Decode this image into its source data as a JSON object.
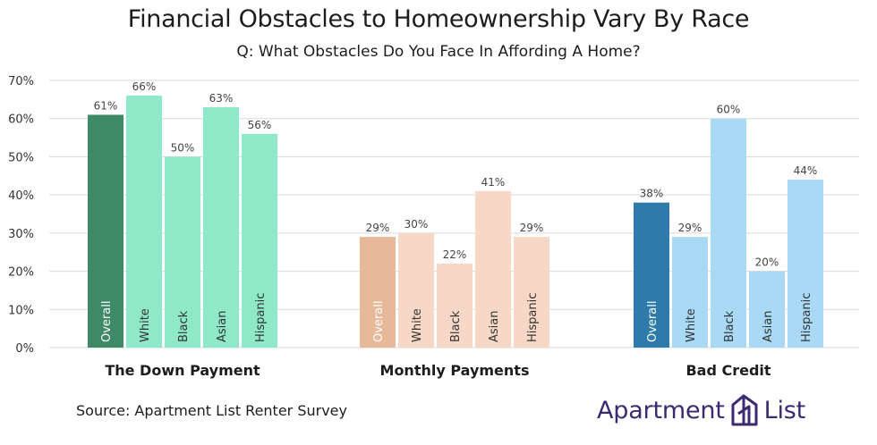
{
  "header": {
    "title": "Financial Obstacles to Homeownership Vary By Race",
    "subtitle": "Q: What Obstacles Do You Face In Affording A Home?"
  },
  "footer": {
    "source": "Source: Apartment List  Renter Survey",
    "logo_word1": "Apartment",
    "logo_word2": "List",
    "logo_icon": "apartment-list-logo-icon"
  },
  "colors": {
    "down_payment_overall": "#3e8a66",
    "down_payment_groups": "#8fe8c8",
    "monthly_overall": "#e8b89a",
    "monthly_groups": "#f7d8c6",
    "bad_credit_overall": "#2e7bab",
    "bad_credit_groups": "#a9d9f5",
    "grid": "#d9d9d9",
    "logo": "#3b2a72"
  },
  "chart_data": {
    "type": "bar",
    "title": "Financial Obstacles to Homeownership Vary By Race",
    "subtitle": "Q: What Obstacles Do You Face In Affording A Home?",
    "ylim": [
      0,
      70
    ],
    "yticks": [
      "0%",
      "10%",
      "20%",
      "30%",
      "40%",
      "50%",
      "60%",
      "70%"
    ],
    "grid": true,
    "groups": [
      {
        "name": "The Down Payment",
        "bars": [
          {
            "label": "Overall",
            "value": 61,
            "value_label": "61%"
          },
          {
            "label": "White",
            "value": 66,
            "value_label": "66%"
          },
          {
            "label": "Black",
            "value": 50,
            "value_label": "50%"
          },
          {
            "label": "Asian",
            "value": 63,
            "value_label": "63%"
          },
          {
            "label": "Hispanic",
            "value": 56,
            "value_label": "56%"
          }
        ]
      },
      {
        "name": "Monthly Payments",
        "bars": [
          {
            "label": "Overall",
            "value": 29,
            "value_label": "29%"
          },
          {
            "label": "White",
            "value": 30,
            "value_label": "30%"
          },
          {
            "label": "Black",
            "value": 22,
            "value_label": "22%"
          },
          {
            "label": "Asian",
            "value": 41,
            "value_label": "41%"
          },
          {
            "label": "Hispanic",
            "value": 29,
            "value_label": "29%"
          }
        ]
      },
      {
        "name": "Bad Credit",
        "bars": [
          {
            "label": "Overall",
            "value": 38,
            "value_label": "38%"
          },
          {
            "label": "White",
            "value": 29,
            "value_label": "29%"
          },
          {
            "label": "Black",
            "value": 60,
            "value_label": "60%"
          },
          {
            "label": "Asian",
            "value": 20,
            "value_label": "20%"
          },
          {
            "label": "Hispanic",
            "value": 44,
            "value_label": "44%"
          }
        ]
      }
    ]
  }
}
